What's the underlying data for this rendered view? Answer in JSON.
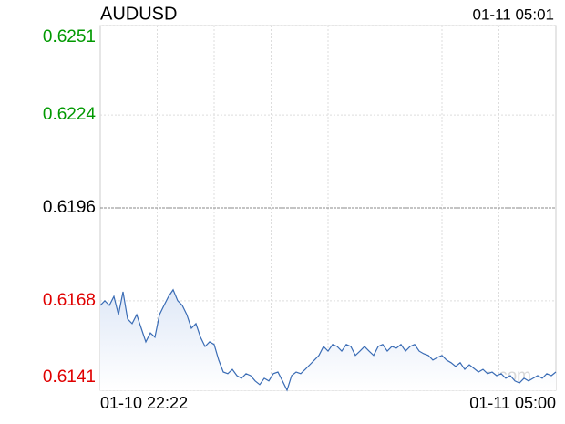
{
  "chart_data": {
    "type": "line",
    "title": "AUDUSD",
    "timestamp": "01-11 05:01",
    "watermark": "sina.com",
    "x_start_label": "01-10 22:22",
    "x_end_label": "01-11 05:00",
    "ylim": [
      0.6141,
      0.6251
    ],
    "yticks": [
      0.6251,
      0.6224,
      0.6196,
      0.6168,
      0.6141
    ],
    "tick_colors": [
      "#009900",
      "#009900",
      "#000000",
      "#e00000",
      "#e00000"
    ],
    "grid": true,
    "series": [
      {
        "name": "AUDUSD",
        "color": "#3a6cb5",
        "values": [
          0.61666,
          0.6168,
          0.61666,
          0.61693,
          0.61638,
          0.61707,
          0.61625,
          0.61611,
          0.61638,
          0.61597,
          0.61556,
          0.61583,
          0.6157,
          0.61638,
          0.61666,
          0.61693,
          0.61713,
          0.6168,
          0.61666,
          0.61638,
          0.61597,
          0.61611,
          0.6157,
          0.61542,
          0.61556,
          0.61548,
          0.61501,
          0.61465,
          0.6146,
          0.61473,
          0.61454,
          0.61446,
          0.6146,
          0.61454,
          0.61438,
          0.61427,
          0.61446,
          0.61438,
          0.6146,
          0.61465,
          0.61438,
          0.6141,
          0.61454,
          0.61465,
          0.6146,
          0.61473,
          0.61487,
          0.61501,
          0.61515,
          0.61542,
          0.61528,
          0.61548,
          0.61542,
          0.61528,
          0.61548,
          0.61542,
          0.61515,
          0.61528,
          0.61542,
          0.61528,
          0.61515,
          0.61542,
          0.61548,
          0.61528,
          0.61542,
          0.61537,
          0.61548,
          0.61528,
          0.61542,
          0.61548,
          0.61528,
          0.6152,
          0.61515,
          0.61501,
          0.61509,
          0.61515,
          0.61501,
          0.61493,
          0.61482,
          0.61493,
          0.61473,
          0.61487,
          0.61476,
          0.61465,
          0.61473,
          0.6146,
          0.61465,
          0.61454,
          0.6146,
          0.61446,
          0.61454,
          0.61438,
          0.61432,
          0.61446,
          0.61438,
          0.61446,
          0.61454,
          0.61446,
          0.6146,
          0.61454,
          0.61465
        ]
      }
    ]
  }
}
